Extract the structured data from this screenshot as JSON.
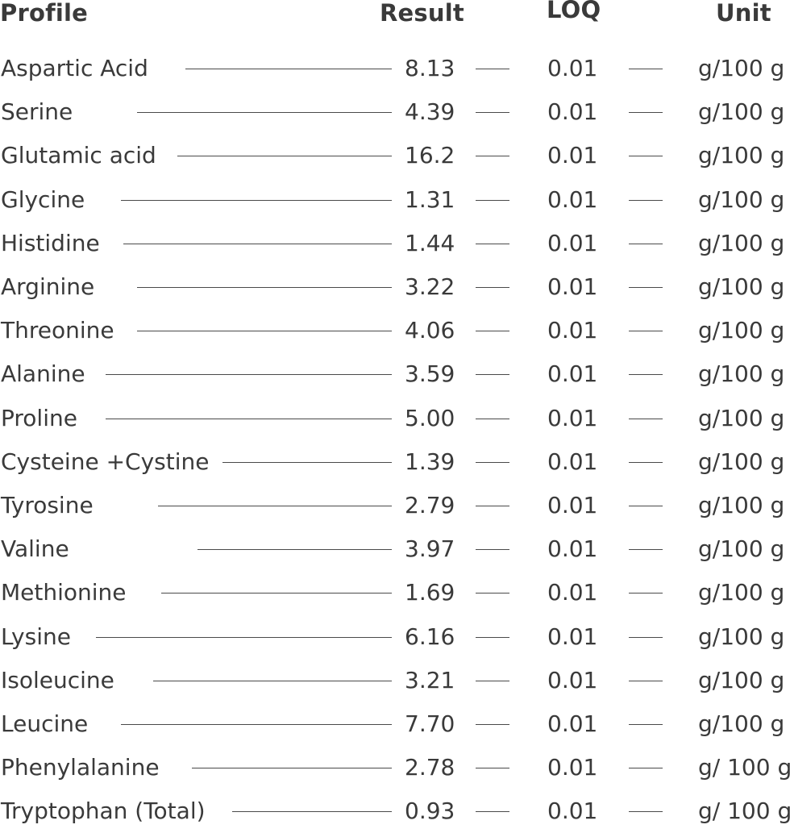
{
  "header": {
    "profile": "Profile",
    "result": "Result",
    "loq": "LOQ",
    "unit": "Unit"
  },
  "rows": [
    {
      "name": "Aspartic Acid",
      "result": "8.13",
      "loq": "0.01",
      "unit": "g/100 g"
    },
    {
      "name": "Serine",
      "result": "4.39",
      "loq": "0.01",
      "unit": "g/100 g"
    },
    {
      "name": "Glutamic acid",
      "result": "16.2",
      "loq": "0.01",
      "unit": "g/100 g"
    },
    {
      "name": "Glycine",
      "result": "1.31",
      "loq": "0.01",
      "unit": "g/100 g"
    },
    {
      "name": "Histidine",
      "result": "1.44",
      "loq": "0.01",
      "unit": "g/100 g"
    },
    {
      "name": "Arginine",
      "result": "3.22",
      "loq": "0.01",
      "unit": "g/100 g"
    },
    {
      "name": "Threonine",
      "result": "4.06",
      "loq": "0.01",
      "unit": "g/100 g"
    },
    {
      "name": "Alanine",
      "result": "3.59",
      "loq": "0.01",
      "unit": "g/100 g"
    },
    {
      "name": "Proline",
      "result": "5.00",
      "loq": "0.01",
      "unit": "g/100 g"
    },
    {
      "name": "Cysteine +Cystine",
      "result": "1.39",
      "loq": "0.01",
      "unit": "g/100 g"
    },
    {
      "name": "Tyrosine",
      "result": "2.79",
      "loq": "0.01",
      "unit": "g/100 g"
    },
    {
      "name": "Valine",
      "result": "3.97",
      "loq": "0.01",
      "unit": "g/100 g"
    },
    {
      "name": "Methionine",
      "result": "1.69",
      "loq": "0.01",
      "unit": "g/100 g"
    },
    {
      "name": "Lysine",
      "result": "6.16",
      "loq": "0.01",
      "unit": "g/100 g"
    },
    {
      "name": "Isoleucine",
      "result": "3.21",
      "loq": "0.01",
      "unit": "g/100 g"
    },
    {
      "name": "Leucine",
      "result": "7.70",
      "loq": "0.01",
      "unit": "g/100 g"
    },
    {
      "name": "Phenylalanine",
      "result": "2.78",
      "loq": "0.01",
      "unit": "g/ 100 g"
    },
    {
      "name": "Tryptophan (Total)",
      "result": "0.93",
      "loq": "0.01",
      "unit": "g/ 100 g"
    }
  ]
}
